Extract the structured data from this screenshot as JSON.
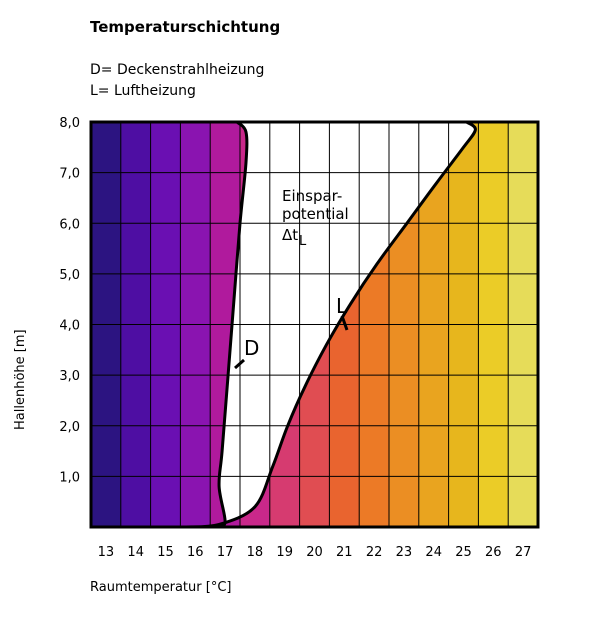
{
  "chart_data": {
    "type": "line",
    "title": "Temperaturschichtung",
    "legend": [
      {
        "text": "D= Deckenstrahlheizung"
      },
      {
        "text": "L= Luftheizung"
      }
    ],
    "xlabel": "Raumtemperatur [°C]",
    "ylabel": "Hallenhöhe [m]",
    "x_categories": [
      "13",
      "14",
      "15",
      "16",
      "17",
      "18",
      "19",
      "20",
      "21",
      "22",
      "23",
      "24",
      "25",
      "26",
      "27"
    ],
    "y_ticks": [
      "1,0",
      "2,0",
      "3,0",
      "4,0",
      "5,0",
      "6,0",
      "7,0",
      "8,0"
    ],
    "ylim": [
      0,
      8
    ],
    "grid": true,
    "series": [
      {
        "name": "D",
        "color": "#000000",
        "points": [
          [
            16.7,
            0
          ],
          [
            17.0,
            0.1
          ],
          [
            16.8,
            0.8
          ],
          [
            16.9,
            1.5
          ],
          [
            17.1,
            3.0
          ],
          [
            17.3,
            4.5
          ],
          [
            17.5,
            6.0
          ],
          [
            17.7,
            7.2
          ],
          [
            17.7,
            7.8
          ],
          [
            17.4,
            8.0
          ]
        ]
      },
      {
        "name": "L",
        "color": "#000000",
        "points": [
          [
            15.7,
            0
          ],
          [
            16.8,
            0.05
          ],
          [
            18.0,
            0.4
          ],
          [
            18.6,
            1.2
          ],
          [
            19.1,
            2.0
          ],
          [
            19.7,
            2.8
          ],
          [
            20.4,
            3.6
          ],
          [
            21.2,
            4.4
          ],
          [
            22.1,
            5.2
          ],
          [
            23.1,
            6.0
          ],
          [
            24.1,
            6.8
          ],
          [
            25.0,
            7.5
          ],
          [
            25.4,
            7.85
          ],
          [
            25.1,
            8.0
          ]
        ]
      }
    ],
    "bands": [
      {
        "x": "13",
        "color": "#2c1481"
      },
      {
        "x": "14",
        "color": "#4e0ea3"
      },
      {
        "x": "15",
        "color": "#6a0fb2"
      },
      {
        "x": "16",
        "color": "#8a14b0"
      },
      {
        "x": "17",
        "color": "#b01a9d"
      },
      {
        "x": "18",
        "color": "#c9288a"
      },
      {
        "x": "19",
        "color": "#d63b70"
      },
      {
        "x": "20",
        "color": "#e04d52"
      },
      {
        "x": "21",
        "color": "#e9642f"
      },
      {
        "x": "22",
        "color": "#ec7a26"
      },
      {
        "x": "23",
        "color": "#eb8e23"
      },
      {
        "x": "24",
        "color": "#e9a41f"
      },
      {
        "x": "25",
        "color": "#e7b61d"
      },
      {
        "x": "26",
        "color": "#ebcc27"
      },
      {
        "x": "27",
        "color": "#e6dc59"
      }
    ],
    "annotations": {
      "savings_line1": "Einspar-",
      "savings_line2": "potential",
      "savings_delta": "Δt",
      "savings_sub": "L",
      "label_d": "D",
      "label_l": "L"
    }
  }
}
